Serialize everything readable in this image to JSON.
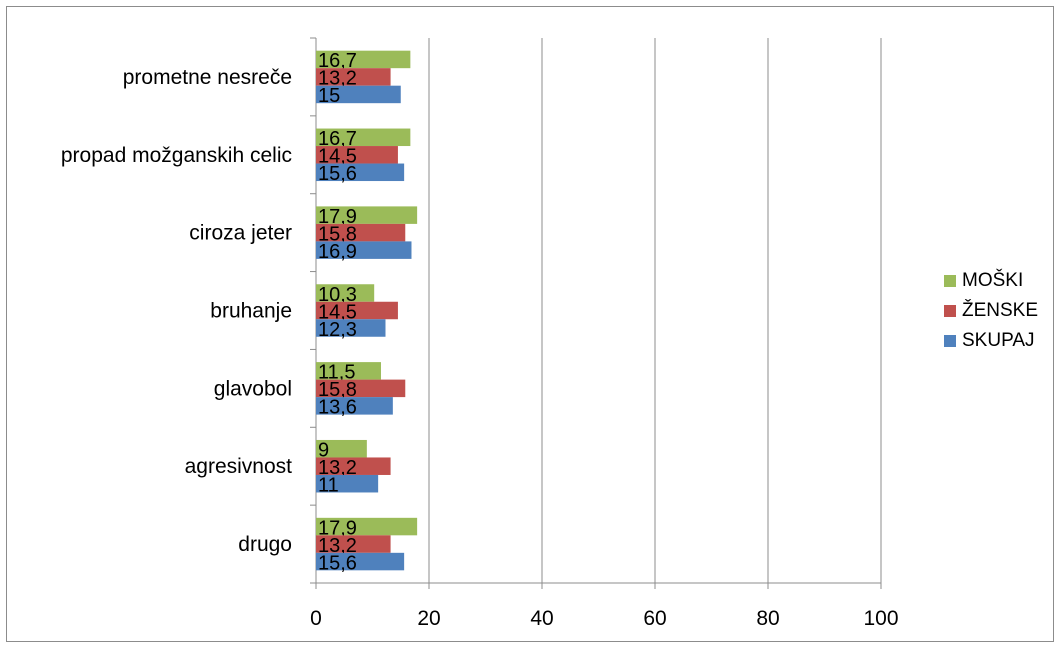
{
  "chart_data": {
    "type": "bar",
    "orientation": "horizontal",
    "categories": [
      "prometne nesreče",
      "propad možganskih celic",
      "ciroza jeter",
      "bruhanje",
      "glavobol",
      "agresivnost",
      "drugo"
    ],
    "series": [
      {
        "name": "MOŠKI",
        "color": "#9BBB59",
        "values": [
          16.7,
          16.7,
          17.9,
          10.3,
          11.5,
          9,
          17.9
        ],
        "labels": [
          "16,7",
          "16,7",
          "17,9",
          "10,3",
          "11,5",
          "9",
          "17,9"
        ]
      },
      {
        "name": "ŽENSKE",
        "color": "#C0504D",
        "values": [
          13.2,
          14.5,
          15.8,
          14.5,
          15.8,
          13.2,
          13.2
        ],
        "labels": [
          "13,2",
          "14,5",
          "15,8",
          "14,5",
          "15,8",
          "13,2",
          "13,2"
        ]
      },
      {
        "name": "SKUPAJ",
        "color": "#4F81BD",
        "values": [
          15,
          15.6,
          16.9,
          12.3,
          13.6,
          11,
          15.6
        ],
        "labels": [
          "15",
          "15,6",
          "16,9",
          "12,3",
          "13,6",
          "11",
          "15,6"
        ]
      }
    ],
    "xlim": [
      0,
      100
    ],
    "xticks": [
      0,
      20,
      40,
      60,
      80,
      100
    ],
    "grid": true,
    "legend_position": "right"
  }
}
